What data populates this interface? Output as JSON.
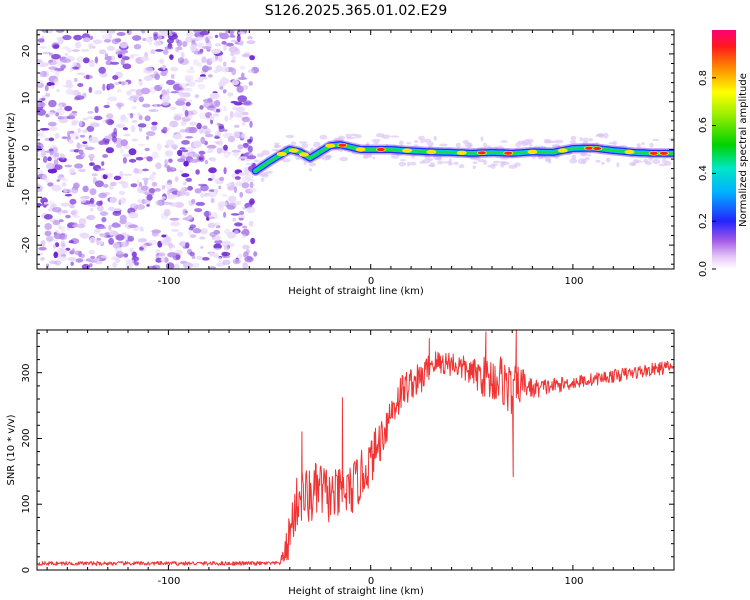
{
  "colors": {
    "snr_line": "#f03434",
    "background": "#ffffff",
    "axis": "#000000"
  },
  "chart_data": [
    {
      "type": "heatmap",
      "title": "S126.2025.365.01.02.E29",
      "xlabel": "Height of straight line (km)",
      "ylabel": "Frequency (Hz)",
      "xlim": [
        -165,
        150
      ],
      "ylim": [
        -25,
        25
      ],
      "xticks": [
        -100,
        0,
        100
      ],
      "xtick_labels": [
        "-100",
        "0",
        "100"
      ],
      "yticks": [
        -20,
        -10,
        0,
        10,
        20
      ],
      "ytick_labels": [
        "-20",
        "-10",
        "0",
        "10",
        "20"
      ],
      "noise_region_x": [
        -165,
        -57
      ],
      "ridge": {
        "x": [
          -57,
          -50,
          -45,
          -40,
          -35,
          -30,
          -25,
          -20,
          -15,
          -10,
          -5,
          0,
          10,
          20,
          30,
          40,
          50,
          60,
          70,
          80,
          90,
          100,
          110,
          120,
          130,
          140,
          150
        ],
        "freq": [
          -4.5,
          -2.5,
          -1.2,
          0,
          -0.5,
          -1.8,
          -0.5,
          0.8,
          1.0,
          0.5,
          0,
          0,
          0,
          -0.3,
          -0.5,
          -0.6,
          -0.8,
          -0.6,
          -0.8,
          -0.5,
          -0.6,
          0.2,
          0.3,
          -0.2,
          -0.6,
          -0.8,
          -0.8
        ]
      },
      "colorbar": {
        "label": "Normalized spectral amplitude",
        "range": [
          0.0,
          1.0
        ],
        "ticks": [
          0.0,
          0.2,
          0.4,
          0.6,
          0.8
        ],
        "tick_labels": [
          "0.0",
          "0.2",
          "0.4",
          "0.6",
          "0.8"
        ]
      }
    },
    {
      "type": "line",
      "title": "",
      "xlabel": "Height of straight line (km)",
      "ylabel": "SNR (10 * v/v)",
      "xlim": [
        -165,
        150
      ],
      "ylim": [
        0,
        365
      ],
      "xticks": [
        -100,
        0,
        100
      ],
      "xtick_labels": [
        "-100",
        "0",
        "100"
      ],
      "yticks": [
        0,
        100,
        200,
        300
      ],
      "ytick_labels": [
        "0",
        "100",
        "200",
        "300"
      ],
      "series": [
        {
          "name": "SNR",
          "trend_x": [
            -165,
            -46,
            -44,
            -42,
            -40,
            -38,
            -35,
            -30,
            -25,
            -20,
            -15,
            -10,
            -5,
            0,
            5,
            10,
            15,
            20,
            25,
            30,
            40,
            50,
            55,
            60,
            65,
            70,
            75,
            80,
            90,
            100,
            110,
            120,
            130,
            140,
            150
          ],
          "trend_y": [
            10,
            10,
            15,
            30,
            55,
            85,
            115,
            110,
            125,
            110,
            115,
            120,
            140,
            165,
            200,
            240,
            270,
            285,
            290,
            315,
            315,
            300,
            295,
            290,
            290,
            270,
            285,
            275,
            280,
            285,
            290,
            295,
            300,
            305,
            310
          ],
          "noise_amp": [
            3,
            3,
            8,
            20,
            40,
            40,
            45,
            45,
            45,
            40,
            40,
            40,
            40,
            35,
            35,
            30,
            30,
            25,
            25,
            20,
            20,
            20,
            30,
            35,
            40,
            40,
            25,
            15,
            12,
            10,
            10,
            10,
            10,
            10,
            10
          ],
          "spikes": [
            {
              "x": 70.5,
              "y": 142
            },
            {
              "x": 72,
              "y": 365
            },
            {
              "x": 57,
              "y": 362
            },
            {
              "x": 29,
              "y": 352
            },
            {
              "x": -14,
              "y": 262
            },
            {
              "x": -34,
              "y": 210
            }
          ]
        }
      ]
    }
  ]
}
